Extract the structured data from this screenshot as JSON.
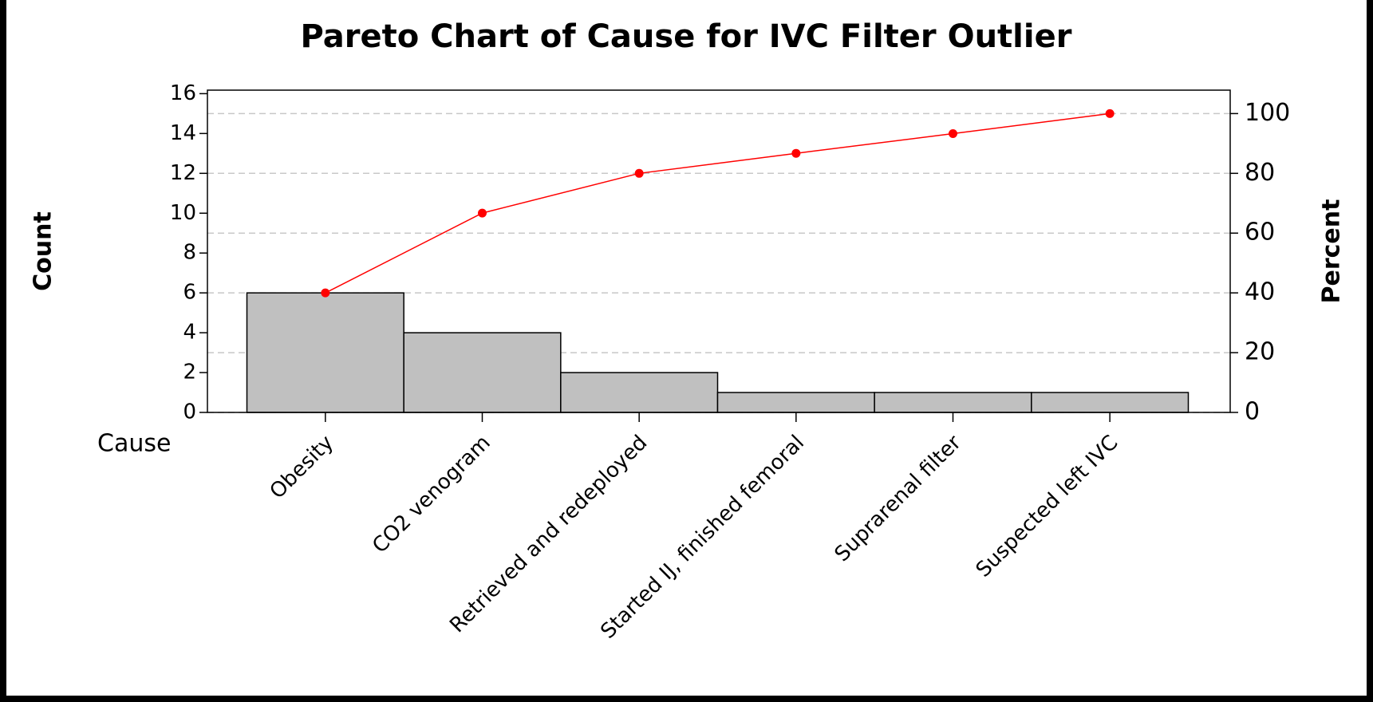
{
  "chart_data": {
    "type": "pareto",
    "title": "Pareto Chart of Cause for IVC Filter Outlier",
    "x_label": "Cause",
    "y_label": "Count",
    "y2_label": "Percent",
    "categories": [
      "Obesity",
      "CO2 venogram",
      "Retrieved and redeployed",
      "Started IJ, finished femoral",
      "Suprarenal filter",
      "Suspected left IVC"
    ],
    "series": [
      {
        "color": "#c0c0c0",
        "values": [
          6,
          4,
          2,
          1,
          1,
          1
        ]
      },
      {
        "color": "#ff0000",
        "axis": "y2",
        "values": [
          40,
          66.7,
          80,
          86.7,
          93.3,
          100
        ]
      }
    ],
    "ylim": [
      0,
      16
    ],
    "yticks": [
      0,
      2,
      4,
      6,
      8,
      10,
      12,
      14,
      16
    ],
    "y2lim": [
      0,
      106.667
    ],
    "y2ticks": [
      0,
      20,
      40,
      60,
      80,
      100
    ],
    "grid": true
  }
}
